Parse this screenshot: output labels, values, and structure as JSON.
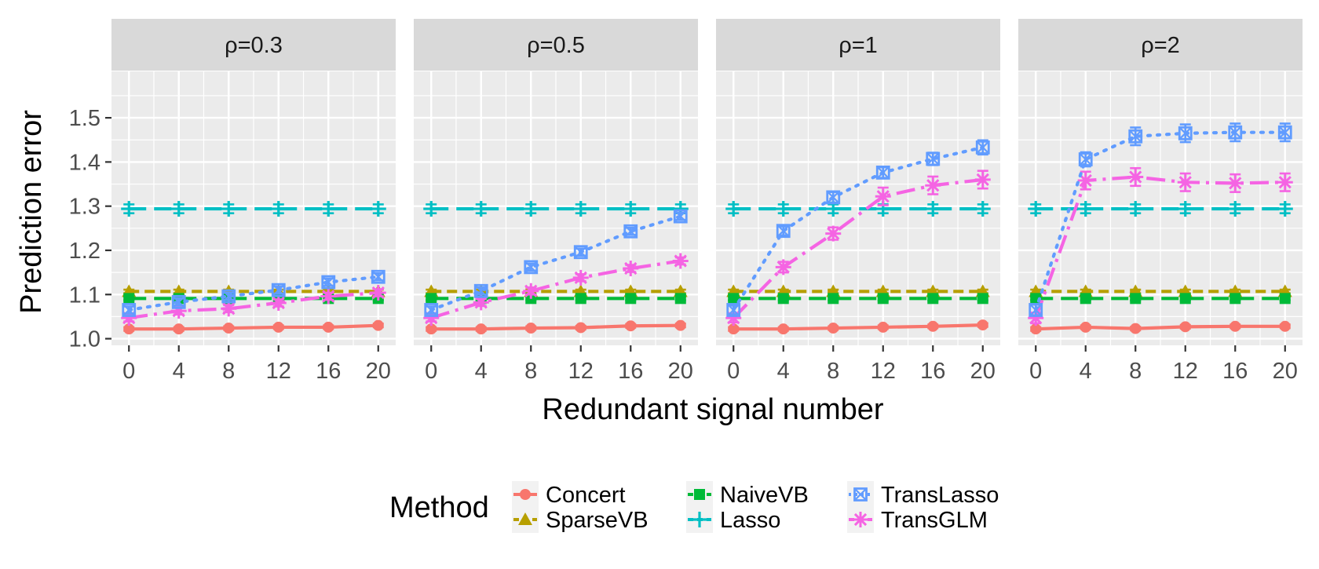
{
  "chart_data": {
    "type": "line",
    "xlabel": "Redundant signal number",
    "ylabel": "Prediction error",
    "x": [
      0,
      4,
      8,
      12,
      16,
      20
    ],
    "xticks": [
      "0",
      "4",
      "8",
      "12",
      "16",
      "20"
    ],
    "yticks": [
      1.0,
      1.1,
      1.2,
      1.3,
      1.4,
      1.5
    ],
    "ytick_labels": [
      "1.0",
      "1.1",
      "1.2",
      "1.3",
      "1.4",
      "1.5"
    ],
    "ylim": [
      0.985,
      1.605
    ],
    "xlim": [
      -1.4,
      21.4
    ],
    "legend": {
      "title": "Method",
      "placement": "bottom"
    },
    "methods": [
      {
        "name": "Concert",
        "color": "#F8766D",
        "linestyle": "solid",
        "marker": "circle"
      },
      {
        "name": "SparseVB",
        "color": "#B79F00",
        "linestyle": "dashed",
        "marker": "triangle"
      },
      {
        "name": "NaiveVB",
        "color": "#00BA38",
        "linestyle": "longdash",
        "marker": "square"
      },
      {
        "name": "Lasso",
        "color": "#00BFC4",
        "linestyle": "longdash",
        "marker": "plus"
      },
      {
        "name": "TransLasso",
        "color": "#619CFF",
        "linestyle": "dotted",
        "marker": "boxx"
      },
      {
        "name": "TransGLM",
        "color": "#F564E3",
        "linestyle": "dashdot",
        "marker": "asterisk"
      }
    ],
    "panels": [
      {
        "title": "ρ=0.3",
        "series": [
          {
            "name": "Concert",
            "values": [
              1.022,
              1.022,
              1.024,
              1.026,
              1.026,
              1.03
            ],
            "err": [
              0.004,
              0.004,
              0.004,
              0.004,
              0.004,
              0.004
            ]
          },
          {
            "name": "SparseVB",
            "values": [
              1.107,
              1.107,
              1.107,
              1.107,
              1.107,
              1.107
            ],
            "err": [
              0.004,
              0.004,
              0.004,
              0.004,
              0.004,
              0.004
            ]
          },
          {
            "name": "NaiveVB",
            "values": [
              1.091,
              1.091,
              1.091,
              1.091,
              1.091,
              1.091
            ],
            "err": [
              0.004,
              0.004,
              0.004,
              0.004,
              0.004,
              0.004
            ]
          },
          {
            "name": "Lasso",
            "values": [
              1.294,
              1.294,
              1.294,
              1.294,
              1.294,
              1.294
            ],
            "err": [
              0.01,
              0.01,
              0.01,
              0.01,
              0.01,
              0.01
            ]
          },
          {
            "name": "TransLasso",
            "values": [
              1.065,
              1.083,
              1.096,
              1.11,
              1.128,
              1.14
            ],
            "err": [
              0.008,
              0.008,
              0.008,
              0.008,
              0.008,
              0.008
            ]
          },
          {
            "name": "TransGLM",
            "values": [
              1.047,
              1.063,
              1.068,
              1.081,
              1.096,
              1.104
            ],
            "err": [
              0.008,
              0.008,
              0.008,
              0.008,
              0.008,
              0.008
            ]
          }
        ]
      },
      {
        "title": "ρ=0.5",
        "series": [
          {
            "name": "Concert",
            "values": [
              1.022,
              1.022,
              1.024,
              1.025,
              1.029,
              1.03
            ],
            "err": [
              0.004,
              0.004,
              0.004,
              0.004,
              0.004,
              0.004
            ]
          },
          {
            "name": "SparseVB",
            "values": [
              1.107,
              1.107,
              1.107,
              1.107,
              1.107,
              1.107
            ],
            "err": [
              0.004,
              0.004,
              0.004,
              0.004,
              0.004,
              0.004
            ]
          },
          {
            "name": "NaiveVB",
            "values": [
              1.091,
              1.091,
              1.091,
              1.091,
              1.091,
              1.091
            ],
            "err": [
              0.004,
              0.004,
              0.004,
              0.004,
              0.004,
              0.004
            ]
          },
          {
            "name": "Lasso",
            "values": [
              1.294,
              1.294,
              1.294,
              1.294,
              1.294,
              1.294
            ],
            "err": [
              0.01,
              0.01,
              0.01,
              0.01,
              0.01,
              0.01
            ]
          },
          {
            "name": "TransLasso",
            "values": [
              1.065,
              1.108,
              1.162,
              1.196,
              1.243,
              1.277
            ],
            "err": [
              0.008,
              0.008,
              0.008,
              0.008,
              0.008,
              0.008
            ]
          },
          {
            "name": "TransGLM",
            "values": [
              1.047,
              1.082,
              1.108,
              1.138,
              1.159,
              1.176
            ],
            "err": [
              0.008,
              0.008,
              0.008,
              0.008,
              0.008,
              0.008
            ]
          }
        ]
      },
      {
        "title": "ρ=1",
        "series": [
          {
            "name": "Concert",
            "values": [
              1.022,
              1.022,
              1.024,
              1.026,
              1.028,
              1.031
            ],
            "err": [
              0.004,
              0.004,
              0.004,
              0.004,
              0.004,
              0.004
            ]
          },
          {
            "name": "SparseVB",
            "values": [
              1.107,
              1.107,
              1.107,
              1.107,
              1.107,
              1.107
            ],
            "err": [
              0.004,
              0.004,
              0.004,
              0.004,
              0.004,
              0.004
            ]
          },
          {
            "name": "NaiveVB",
            "values": [
              1.091,
              1.091,
              1.091,
              1.091,
              1.091,
              1.091
            ],
            "err": [
              0.004,
              0.004,
              0.004,
              0.004,
              0.004,
              0.004
            ]
          },
          {
            "name": "Lasso",
            "values": [
              1.294,
              1.294,
              1.294,
              1.294,
              1.294,
              1.294
            ],
            "err": [
              0.01,
              0.01,
              0.01,
              0.01,
              0.01,
              0.01
            ]
          },
          {
            "name": "TransLasso",
            "values": [
              1.065,
              1.244,
              1.32,
              1.376,
              1.407,
              1.433
            ],
            "err": [
              0.01,
              0.01,
              0.012,
              0.012,
              0.014,
              0.016
            ]
          },
          {
            "name": "TransGLM",
            "values": [
              1.047,
              1.162,
              1.238,
              1.322,
              1.347,
              1.36
            ],
            "err": [
              0.01,
              0.012,
              0.014,
              0.02,
              0.02,
              0.02
            ]
          }
        ]
      },
      {
        "title": "ρ=2",
        "series": [
          {
            "name": "Concert",
            "values": [
              1.022,
              1.026,
              1.023,
              1.027,
              1.028,
              1.028
            ],
            "err": [
              0.004,
              0.004,
              0.004,
              0.004,
              0.004,
              0.004
            ]
          },
          {
            "name": "SparseVB",
            "values": [
              1.107,
              1.107,
              1.107,
              1.107,
              1.107,
              1.107
            ],
            "err": [
              0.004,
              0.004,
              0.004,
              0.004,
              0.004,
              0.004
            ]
          },
          {
            "name": "NaiveVB",
            "values": [
              1.091,
              1.091,
              1.091,
              1.091,
              1.091,
              1.091
            ],
            "err": [
              0.004,
              0.004,
              0.004,
              0.004,
              0.004,
              0.004
            ]
          },
          {
            "name": "Lasso",
            "values": [
              1.294,
              1.294,
              1.294,
              1.294,
              1.294,
              1.294
            ],
            "err": [
              0.01,
              0.01,
              0.01,
              0.01,
              0.01,
              0.01
            ]
          },
          {
            "name": "TransLasso",
            "values": [
              1.065,
              1.406,
              1.458,
              1.465,
              1.467,
              1.467
            ],
            "err": [
              0.012,
              0.016,
              0.02,
              0.02,
              0.02,
              0.02
            ]
          },
          {
            "name": "TransGLM",
            "values": [
              1.047,
              1.358,
              1.366,
              1.354,
              1.352,
              1.354
            ],
            "err": [
              0.012,
              0.02,
              0.02,
              0.02,
              0.02,
              0.02
            ]
          }
        ]
      }
    ]
  }
}
